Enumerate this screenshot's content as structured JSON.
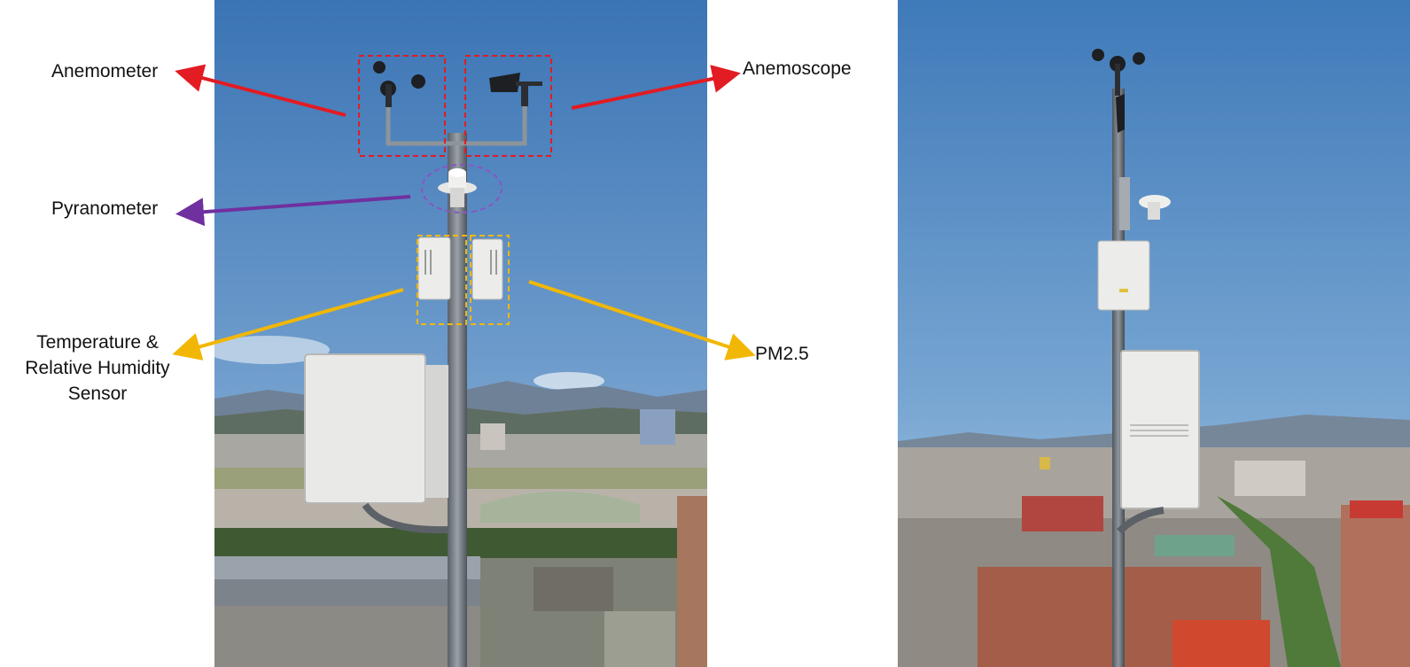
{
  "labels": {
    "anemometer": "Anemometer",
    "anemoscope": "Anemoscope",
    "pyranometer": "Pyranometer",
    "temperature_lines": [
      "Temperature &",
      "Relative Humidity",
      "Sensor"
    ],
    "pm25": "PM2.5"
  },
  "colors": {
    "anemometer_arrow": "#e31b23",
    "anemoscope_arrow": "#e31b23",
    "pyranometer_arrow": "#7030a0",
    "temperature_arrow": "#f2b705",
    "pm25_arrow": "#f2b705",
    "sky_top": "#3e78b8",
    "sky_bottom": "#9cc0de"
  }
}
